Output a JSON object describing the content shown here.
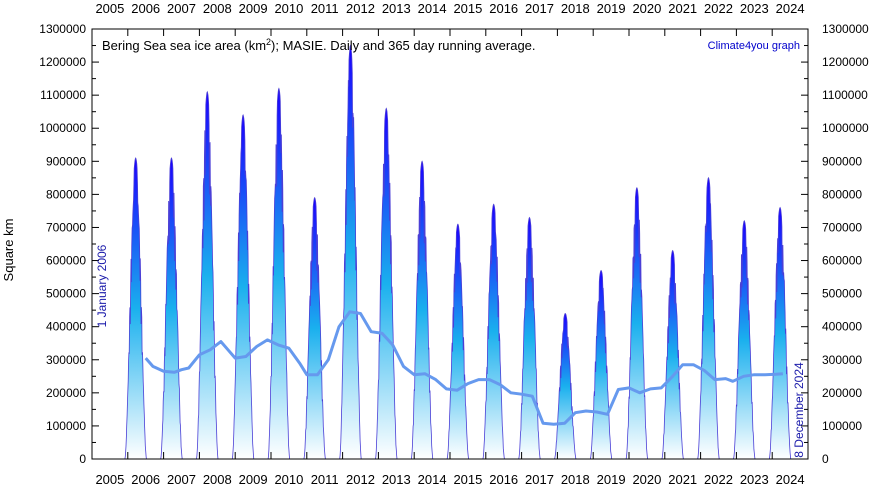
{
  "chart_data": {
    "type": "area",
    "title": "Bering Sea sea ice area (km",
    "title_sup": "2",
    "title_tail": "); MASIE. Daily and 365 day running average.",
    "credit": "Climate4you graph",
    "ylabel": "Square km",
    "start_annotation": "1 January 2006",
    "end_annotation": "8 December 2024",
    "ylim": [
      0,
      1300000
    ],
    "xlim": [
      2005,
      2025
    ],
    "y_ticks": [
      "0",
      "100000",
      "200000",
      "300000",
      "400000",
      "500000",
      "600000",
      "700000",
      "800000",
      "900000",
      "1000000",
      "1100000",
      "1200000",
      "1300000"
    ],
    "x_ticks": [
      "2005",
      "2006",
      "2007",
      "2008",
      "2009",
      "2010",
      "2011",
      "2012",
      "2013",
      "2014",
      "2015",
      "2016",
      "2017",
      "2018",
      "2019",
      "2020",
      "2021",
      "2022",
      "2023",
      "2024"
    ],
    "grid": false,
    "series": [
      {
        "name": "Daily",
        "color_top": "#1a00ff",
        "color_mid": "#1ab0ee",
        "color_bottom": "#ffffff",
        "annual_peaks": [
          {
            "year": 2006,
            "peak": 910000
          },
          {
            "year": 2007,
            "peak": 910000
          },
          {
            "year": 2008,
            "peak": 1110000
          },
          {
            "year": 2009,
            "peak": 1040000
          },
          {
            "year": 2010,
            "peak": 1120000
          },
          {
            "year": 2011,
            "peak": 790000
          },
          {
            "year": 2012,
            "peak": 1250000
          },
          {
            "year": 2013,
            "peak": 1060000
          },
          {
            "year": 2014,
            "peak": 900000
          },
          {
            "year": 2015,
            "peak": 710000
          },
          {
            "year": 2016,
            "peak": 770000
          },
          {
            "year": 2017,
            "peak": 730000
          },
          {
            "year": 2018,
            "peak": 440000
          },
          {
            "year": 2019,
            "peak": 570000
          },
          {
            "year": 2020,
            "peak": 820000
          },
          {
            "year": 2021,
            "peak": 630000
          },
          {
            "year": 2022,
            "peak": 850000
          },
          {
            "year": 2023,
            "peak": 720000
          },
          {
            "year": 2024,
            "peak": 760000
          }
        ]
      },
      {
        "name": "365 day running average",
        "color": "#6699ee",
        "points": [
          [
            2006.5,
            305000
          ],
          [
            2006.7,
            280000
          ],
          [
            2007.0,
            265000
          ],
          [
            2007.3,
            262000
          ],
          [
            2007.5,
            270000
          ],
          [
            2007.7,
            275000
          ],
          [
            2008.0,
            315000
          ],
          [
            2008.3,
            330000
          ],
          [
            2008.6,
            355000
          ],
          [
            2008.8,
            330000
          ],
          [
            2009.0,
            305000
          ],
          [
            2009.3,
            310000
          ],
          [
            2009.6,
            340000
          ],
          [
            2009.9,
            360000
          ],
          [
            2010.2,
            345000
          ],
          [
            2010.5,
            335000
          ],
          [
            2010.8,
            290000
          ],
          [
            2011.0,
            255000
          ],
          [
            2011.3,
            255000
          ],
          [
            2011.6,
            300000
          ],
          [
            2011.9,
            400000
          ],
          [
            2012.2,
            445000
          ],
          [
            2012.5,
            440000
          ],
          [
            2012.8,
            385000
          ],
          [
            2013.1,
            380000
          ],
          [
            2013.4,
            345000
          ],
          [
            2013.7,
            280000
          ],
          [
            2014.0,
            255000
          ],
          [
            2014.3,
            258000
          ],
          [
            2014.6,
            240000
          ],
          [
            2014.9,
            212000
          ],
          [
            2015.2,
            208000
          ],
          [
            2015.5,
            228000
          ],
          [
            2015.8,
            240000
          ],
          [
            2016.1,
            240000
          ],
          [
            2016.4,
            225000
          ],
          [
            2016.7,
            200000
          ],
          [
            2017.0,
            196000
          ],
          [
            2017.3,
            190000
          ],
          [
            2017.6,
            108000
          ],
          [
            2017.9,
            105000
          ],
          [
            2018.2,
            108000
          ],
          [
            2018.5,
            140000
          ],
          [
            2018.8,
            145000
          ],
          [
            2019.1,
            142000
          ],
          [
            2019.4,
            135000
          ],
          [
            2019.7,
            210000
          ],
          [
            2020.0,
            215000
          ],
          [
            2020.3,
            200000
          ],
          [
            2020.6,
            212000
          ],
          [
            2020.9,
            215000
          ],
          [
            2021.2,
            248000
          ],
          [
            2021.5,
            285000
          ],
          [
            2021.8,
            285000
          ],
          [
            2022.1,
            268000
          ],
          [
            2022.4,
            240000
          ],
          [
            2022.7,
            243000
          ],
          [
            2022.9,
            235000
          ],
          [
            2023.2,
            250000
          ],
          [
            2023.5,
            255000
          ],
          [
            2023.8,
            255000
          ],
          [
            2024.1,
            256000
          ],
          [
            2024.3,
            258000
          ]
        ]
      }
    ]
  }
}
